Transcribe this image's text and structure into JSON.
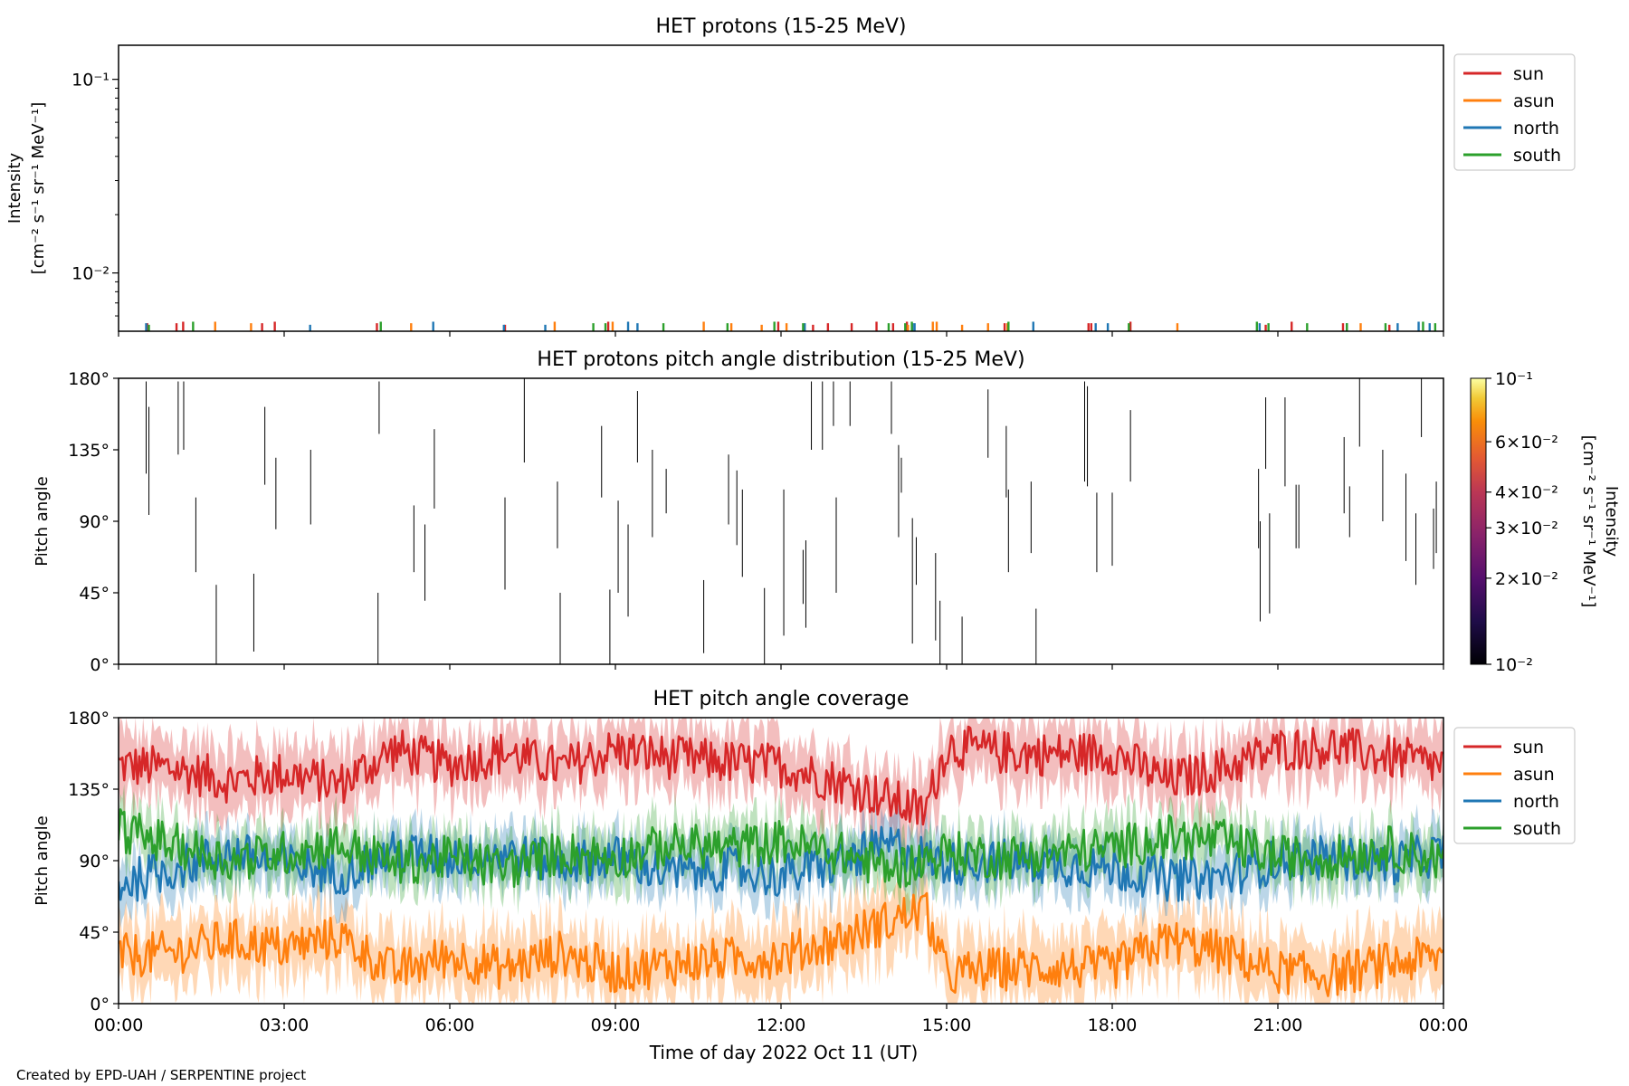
{
  "colors": {
    "sun": "#d62728",
    "asun": "#ff7f0e",
    "north": "#1f77b4",
    "south": "#2ca02c"
  },
  "footer": "Created by EPD-UAH / SERPENTINE project",
  "xaxis": {
    "label": "Time of day 2022 Oct 11 (UT)",
    "ticks": [
      "00:00",
      "03:00",
      "06:00",
      "09:00",
      "12:00",
      "15:00",
      "18:00",
      "21:00",
      "00:00"
    ],
    "range_hours": [
      0,
      24
    ]
  },
  "chart_data": [
    {
      "type": "line",
      "title": "HET protons (15-25 MeV)",
      "ylabel": "Intensity",
      "ylabel_units": "[cm⁻² s⁻¹ sr⁻¹ MeV⁻¹]",
      "yscale": "log",
      "ylim": [
        0.005,
        0.15
      ],
      "yticks": [
        "10⁻¹",
        "10⁻²"
      ],
      "legend": {
        "entries": [
          "sun",
          "asun",
          "north",
          "south"
        ],
        "placement": "right-upper"
      },
      "spike_value_range": [
        0.005,
        0.0058
      ],
      "series": [
        {
          "name": "sun",
          "x": [
            0.52,
            1.05,
            1.17,
            2.6,
            2.83,
            4.68,
            7.0,
            8.87,
            11.95,
            12.58,
            12.85,
            13.28,
            13.73,
            14.03,
            14.28,
            16.05,
            17.57,
            17.62,
            18.33,
            20.78,
            21.25,
            22.18,
            23.02
          ],
          "y": [
            0.0055,
            0.0055,
            0.0056,
            0.0055,
            0.0056,
            0.0055,
            0.0054,
            0.0056,
            0.0056,
            0.0054,
            0.0055,
            0.0055,
            0.0056,
            0.0055,
            0.0056,
            0.0055,
            0.0055,
            0.0055,
            0.0056,
            0.0054,
            0.0056,
            0.0055,
            0.0054
          ]
        },
        {
          "name": "asun",
          "x": [
            1.75,
            2.4,
            5.3,
            7.9,
            8.95,
            10.6,
            11.1,
            11.65,
            12.1,
            14.3,
            14.75,
            14.82,
            15.28,
            15.75,
            16.1,
            19.18,
            22.5
          ],
          "y": [
            0.0056,
            0.0055,
            0.0055,
            0.0056,
            0.0056,
            0.0056,
            0.0055,
            0.0054,
            0.0055,
            0.0054,
            0.0056,
            0.0056,
            0.0054,
            0.0055,
            0.0055,
            0.0055,
            0.0055
          ]
        },
        {
          "name": "north",
          "x": [
            0.5,
            3.47,
            5.7,
            6.98,
            7.73,
            9.23,
            9.4,
            12.43,
            14.38,
            14.42,
            16.57,
            17.7,
            17.92,
            20.67,
            22.25,
            23.17,
            23.55,
            23.75
          ],
          "y": [
            0.0055,
            0.0054,
            0.0056,
            0.0054,
            0.0054,
            0.0056,
            0.0055,
            0.0055,
            0.0055,
            0.0055,
            0.0056,
            0.0055,
            0.0055,
            0.0055,
            0.0055,
            0.0055,
            0.0056,
            0.0055
          ]
        },
        {
          "name": "south",
          "x": [
            0.55,
            1.35,
            4.75,
            8.6,
            8.82,
            9.87,
            11.03,
            11.88,
            12.4,
            13.95,
            14.25,
            14.37,
            16.12,
            18.3,
            20.62,
            20.83,
            21.53,
            22.25,
            22.95,
            23.63,
            23.85
          ],
          "y": [
            0.0054,
            0.0056,
            0.0056,
            0.0055,
            0.0055,
            0.0055,
            0.0055,
            0.0056,
            0.0055,
            0.0055,
            0.0055,
            0.0056,
            0.0056,
            0.0055,
            0.0056,
            0.0055,
            0.0055,
            0.0055,
            0.0055,
            0.0056,
            0.0055
          ]
        }
      ]
    },
    {
      "type": "heatmap",
      "title": "HET protons pitch angle distribution (15-25 MeV)",
      "ylabel": "Pitch angle",
      "ylim": [
        0,
        180
      ],
      "yticks": [
        "0°",
        "45°",
        "90°",
        "135°",
        "180°"
      ],
      "colorbar": {
        "label": "Intensity",
        "units": "[cm⁻² s⁻¹ sr⁻¹ MeV⁻¹]",
        "scale": "log",
        "range": [
          0.01,
          0.1
        ],
        "ticks": [
          {
            "value": 0.1,
            "label": "10⁻¹"
          },
          {
            "value": 0.06,
            "label": "6×10⁻²"
          },
          {
            "value": 0.04,
            "label": "4×10⁻²"
          },
          {
            "value": 0.03,
            "label": "3×10⁻²"
          },
          {
            "value": 0.02,
            "label": "2×10⁻²"
          },
          {
            "value": 0.01,
            "label": "10⁻²"
          }
        ]
      },
      "segments": [
        [
          0.5,
          178,
          120
        ],
        [
          0.55,
          162,
          94
        ],
        [
          1.08,
          178,
          132
        ],
        [
          1.18,
          178,
          135
        ],
        [
          1.4,
          105,
          58
        ],
        [
          1.77,
          50,
          0
        ],
        [
          2.45,
          57,
          8
        ],
        [
          2.65,
          162,
          113
        ],
        [
          2.85,
          130,
          85
        ],
        [
          3.48,
          135,
          88
        ],
        [
          4.72,
          178,
          145
        ],
        [
          4.7,
          45,
          0
        ],
        [
          5.35,
          100,
          58
        ],
        [
          5.55,
          88,
          40
        ],
        [
          5.72,
          148,
          98
        ],
        [
          7.0,
          105,
          47
        ],
        [
          7.35,
          180,
          127
        ],
        [
          7.95,
          115,
          73
        ],
        [
          8.0,
          45,
          0
        ],
        [
          8.75,
          150,
          105
        ],
        [
          8.9,
          47,
          0
        ],
        [
          9.05,
          103,
          45
        ],
        [
          9.23,
          88,
          30
        ],
        [
          9.4,
          172,
          127
        ],
        [
          9.67,
          135,
          80
        ],
        [
          9.92,
          123,
          95
        ],
        [
          10.6,
          53,
          7
        ],
        [
          11.05,
          132,
          88
        ],
        [
          11.2,
          122,
          75
        ],
        [
          11.3,
          110,
          55
        ],
        [
          11.7,
          48,
          0
        ],
        [
          12.05,
          110,
          18
        ],
        [
          12.4,
          72,
          38
        ],
        [
          12.45,
          78,
          23
        ],
        [
          12.55,
          178,
          135
        ],
        [
          12.75,
          178,
          135
        ],
        [
          12.95,
          178,
          150
        ],
        [
          13.0,
          105,
          45
        ],
        [
          13.25,
          178,
          150
        ],
        [
          14.0,
          178,
          145
        ],
        [
          14.13,
          138,
          80
        ],
        [
          14.18,
          130,
          108
        ],
        [
          14.38,
          92,
          13
        ],
        [
          14.45,
          80,
          50
        ],
        [
          14.8,
          70,
          15
        ],
        [
          14.88,
          40,
          0
        ],
        [
          15.28,
          30,
          0
        ],
        [
          15.75,
          173,
          130
        ],
        [
          16.08,
          150,
          105
        ],
        [
          16.12,
          110,
          58
        ],
        [
          16.53,
          115,
          70
        ],
        [
          16.62,
          35,
          0
        ],
        [
          17.5,
          178,
          115
        ],
        [
          17.55,
          175,
          112
        ],
        [
          17.72,
          108,
          58
        ],
        [
          18.0,
          108,
          62
        ],
        [
          18.33,
          160,
          115
        ],
        [
          20.65,
          123,
          73
        ],
        [
          20.68,
          90,
          27
        ],
        [
          20.78,
          168,
          123
        ],
        [
          20.85,
          95,
          32
        ],
        [
          21.13,
          168,
          112
        ],
        [
          21.33,
          113,
          73
        ],
        [
          21.38,
          113,
          73
        ],
        [
          22.2,
          143,
          95
        ],
        [
          22.3,
          112,
          80
        ],
        [
          22.48,
          180,
          137
        ],
        [
          22.9,
          135,
          90
        ],
        [
          23.32,
          120,
          65
        ],
        [
          23.5,
          95,
          50
        ],
        [
          23.6,
          180,
          143
        ],
        [
          23.82,
          98,
          60
        ],
        [
          23.87,
          115,
          70
        ]
      ]
    },
    {
      "type": "line",
      "title": "HET pitch angle coverage",
      "ylabel": "Pitch angle",
      "ylim": [
        0,
        180
      ],
      "yticks": [
        "0°",
        "45°",
        "90°",
        "135°",
        "180°"
      ],
      "legend": {
        "entries": [
          "sun",
          "asun",
          "north",
          "south"
        ],
        "placement": "right-upper"
      },
      "band_note": "shaded min/max envelope around each mean",
      "series": [
        {
          "name": "sun",
          "x": [
            0,
            1,
            2,
            3,
            4,
            5,
            6,
            7,
            8,
            9,
            10,
            11,
            12,
            13,
            14,
            14.6,
            15,
            16,
            17,
            18,
            19,
            20,
            21,
            22,
            23,
            24
          ],
          "y": [
            150,
            148,
            140,
            145,
            138,
            160,
            150,
            158,
            148,
            160,
            155,
            152,
            150,
            140,
            128,
            120,
            162,
            158,
            157,
            158,
            140,
            148,
            160,
            162,
            155,
            150
          ],
          "spread": 20
        },
        {
          "name": "asun",
          "x": [
            0,
            1,
            2,
            3,
            4,
            5,
            6,
            7,
            8,
            9,
            10,
            11,
            12,
            13,
            14,
            14.6,
            15,
            16,
            17,
            18,
            19,
            20,
            21,
            22,
            23,
            24
          ],
          "y": [
            30,
            32,
            40,
            35,
            42,
            20,
            30,
            22,
            32,
            20,
            25,
            28,
            30,
            40,
            52,
            60,
            18,
            22,
            23,
            22,
            40,
            32,
            20,
            18,
            25,
            30
          ],
          "spread": 20
        },
        {
          "name": "north",
          "x": [
            0,
            1,
            2,
            3,
            4,
            5,
            6,
            7,
            8,
            9,
            10,
            11,
            12,
            13,
            14,
            14.6,
            15,
            16,
            17,
            18,
            19,
            20,
            21,
            22,
            23,
            24
          ],
          "y": [
            75,
            85,
            95,
            88,
            82,
            95,
            92,
            95,
            88,
            92,
            82,
            85,
            80,
            88,
            100,
            92,
            88,
            90,
            88,
            85,
            78,
            80,
            90,
            92,
            88,
            95
          ],
          "spread": 15
        },
        {
          "name": "south",
          "x": [
            0,
            1,
            2,
            3,
            4,
            5,
            6,
            7,
            8,
            9,
            10,
            11,
            12,
            13,
            14,
            14.6,
            15,
            16,
            17,
            18,
            19,
            20,
            21,
            22,
            23,
            24
          ],
          "y": [
            110,
            100,
            90,
            95,
            100,
            88,
            92,
            85,
            95,
            92,
            100,
            98,
            102,
            95,
            85,
            90,
            95,
            92,
            95,
            98,
            105,
            102,
            92,
            92,
            98,
            90
          ],
          "spread": 15
        }
      ]
    }
  ]
}
